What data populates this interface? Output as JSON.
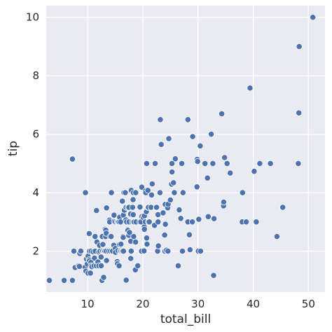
{
  "chart_data": {
    "type": "scatter",
    "title": "",
    "xlabel": "total_bill",
    "ylabel": "tip",
    "xlim": [
      2.5,
      53
    ],
    "ylim": [
      0.6,
      10.4
    ],
    "xticks": [
      10,
      20,
      30,
      40,
      50
    ],
    "yticks": [
      2,
      4,
      6,
      8,
      10
    ],
    "grid": true,
    "colors": {
      "plot_bg": "#EAEAF2",
      "grid": "#FFFFFF",
      "marker": "#4C72B0",
      "marker_edge": "#FFFFFF"
    },
    "points": [
      [
        3.07,
        1.0
      ],
      [
        5.75,
        1.0
      ],
      [
        7.25,
        1.0
      ],
      [
        7.25,
        5.15
      ],
      [
        7.51,
        2.0
      ],
      [
        7.74,
        1.44
      ],
      [
        8.35,
        1.5
      ],
      [
        8.52,
        1.48
      ],
      [
        8.58,
        1.92
      ],
      [
        8.77,
        2.0
      ],
      [
        9.55,
        1.45
      ],
      [
        9.6,
        4.0
      ],
      [
        9.68,
        1.32
      ],
      [
        9.78,
        1.73
      ],
      [
        9.94,
        1.56
      ],
      [
        10.07,
        1.83
      ],
      [
        10.07,
        1.25
      ],
      [
        10.27,
        1.71
      ],
      [
        10.29,
        2.6
      ],
      [
        10.33,
        1.67
      ],
      [
        10.34,
        2.0
      ],
      [
        10.51,
        1.25
      ],
      [
        10.59,
        1.61
      ],
      [
        10.63,
        2.0
      ],
      [
        10.65,
        1.5
      ],
      [
        10.77,
        1.47
      ],
      [
        11.02,
        1.98
      ],
      [
        11.17,
        1.5
      ],
      [
        11.24,
        1.76
      ],
      [
        11.35,
        2.5
      ],
      [
        11.38,
        2.0
      ],
      [
        11.59,
        1.5
      ],
      [
        11.61,
        3.39
      ],
      [
        11.69,
        2.31
      ],
      [
        11.87,
        1.63
      ],
      [
        12.02,
        1.97
      ],
      [
        12.03,
        1.5
      ],
      [
        12.16,
        2.2
      ],
      [
        12.26,
        2.0
      ],
      [
        12.43,
        1.8
      ],
      [
        12.46,
        1.5
      ],
      [
        12.48,
        2.52
      ],
      [
        12.54,
        2.5
      ],
      [
        12.6,
        1.0
      ],
      [
        12.66,
        2.5
      ],
      [
        12.69,
        2.0
      ],
      [
        12.74,
        2.01
      ],
      [
        12.76,
        2.23
      ],
      [
        12.9,
        1.1
      ],
      [
        13.0,
        2.0
      ],
      [
        13.03,
        2.0
      ],
      [
        13.13,
        2.0
      ],
      [
        13.16,
        2.75
      ],
      [
        13.27,
        2.5
      ],
      [
        13.28,
        2.72
      ],
      [
        13.37,
        2.0
      ],
      [
        13.39,
        2.61
      ],
      [
        13.42,
        1.68
      ],
      [
        13.42,
        3.48
      ],
      [
        13.81,
        2.0
      ],
      [
        13.94,
        3.06
      ],
      [
        14.0,
        3.0
      ],
      [
        14.07,
        2.5
      ],
      [
        14.15,
        2.0
      ],
      [
        14.26,
        2.5
      ],
      [
        14.31,
        4.0
      ],
      [
        14.48,
        2.0
      ],
      [
        14.52,
        2.0
      ],
      [
        14.73,
        2.2
      ],
      [
        14.78,
        3.23
      ],
      [
        14.83,
        3.02
      ],
      [
        15.01,
        2.09
      ],
      [
        15.04,
        1.96
      ],
      [
        15.06,
        3.0
      ],
      [
        15.36,
        1.64
      ],
      [
        15.38,
        3.0
      ],
      [
        15.42,
        1.57
      ],
      [
        15.48,
        2.02
      ],
      [
        15.53,
        3.0
      ],
      [
        15.69,
        1.5
      ],
      [
        15.69,
        3.0
      ],
      [
        15.77,
        2.23
      ],
      [
        15.81,
        3.16
      ],
      [
        15.95,
        2.0
      ],
      [
        15.98,
        2.03
      ],
      [
        15.98,
        3.0
      ],
      [
        16.0,
        2.0
      ],
      [
        16.04,
        2.24
      ],
      [
        16.21,
        2.0
      ],
      [
        16.27,
        2.5
      ],
      [
        16.29,
        3.71
      ],
      [
        16.31,
        2.0
      ],
      [
        16.4,
        2.5
      ],
      [
        16.45,
        2.47
      ],
      [
        16.47,
        3.23
      ],
      [
        16.49,
        2.0
      ],
      [
        16.58,
        4.0
      ],
      [
        16.66,
        3.4
      ],
      [
        16.82,
        4.0
      ],
      [
        16.93,
        3.07
      ],
      [
        16.97,
        3.5
      ],
      [
        16.99,
        1.01
      ],
      [
        17.07,
        3.0
      ],
      [
        17.26,
        2.74
      ],
      [
        17.29,
        2.71
      ],
      [
        17.31,
        3.5
      ],
      [
        17.46,
        2.54
      ],
      [
        17.47,
        3.5
      ],
      [
        17.51,
        3.0
      ],
      [
        17.59,
        2.64
      ],
      [
        17.78,
        3.27
      ],
      [
        17.81,
        2.34
      ],
      [
        17.82,
        1.75
      ],
      [
        17.89,
        2.0
      ],
      [
        17.92,
        4.08
      ],
      [
        18.04,
        3.0
      ],
      [
        18.15,
        3.5
      ],
      [
        18.24,
        3.76
      ],
      [
        18.26,
        3.25
      ],
      [
        18.28,
        4.0
      ],
      [
        18.29,
        3.0
      ],
      [
        18.35,
        2.5
      ],
      [
        18.43,
        3.0
      ],
      [
        18.64,
        1.36
      ],
      [
        18.69,
        2.31
      ],
      [
        18.71,
        4.0
      ],
      [
        18.78,
        3.0
      ],
      [
        19.08,
        1.5
      ],
      [
        19.44,
        3.0
      ],
      [
        19.49,
        3.51
      ],
      [
        19.65,
        3.0
      ],
      [
        19.77,
        2.0
      ],
      [
        19.81,
        4.19
      ],
      [
        19.82,
        3.18
      ],
      [
        20.08,
        3.15
      ],
      [
        20.23,
        2.01
      ],
      [
        20.27,
        2.83
      ],
      [
        20.29,
        2.75
      ],
      [
        20.29,
        3.21
      ],
      [
        20.45,
        3.0
      ],
      [
        20.49,
        4.06
      ],
      [
        20.53,
        4.0
      ],
      [
        20.65,
        3.35
      ],
      [
        20.69,
        2.45
      ],
      [
        20.69,
        5.0
      ],
      [
        20.76,
        2.24
      ],
      [
        20.9,
        3.5
      ],
      [
        20.92,
        4.08
      ],
      [
        21.01,
        3.5
      ],
      [
        21.01,
        3.0
      ],
      [
        21.16,
        3.0
      ],
      [
        21.5,
        3.5
      ],
      [
        21.58,
        3.92
      ],
      [
        21.7,
        4.3
      ],
      [
        22.12,
        2.88
      ],
      [
        22.23,
        5.0
      ],
      [
        22.42,
        3.48
      ],
      [
        22.49,
        3.5
      ],
      [
        22.67,
        2.0
      ],
      [
        22.75,
        3.25
      ],
      [
        22.76,
        3.0
      ],
      [
        22.82,
        2.18
      ],
      [
        23.1,
        4.0
      ],
      [
        23.17,
        6.5
      ],
      [
        23.33,
        5.65
      ],
      [
        23.68,
        3.31
      ],
      [
        23.95,
        2.55
      ],
      [
        24.01,
        2.0
      ],
      [
        24.06,
        3.6
      ],
      [
        24.08,
        2.92
      ],
      [
        24.27,
        2.03
      ],
      [
        24.52,
        3.48
      ],
      [
        24.55,
        2.0
      ],
      [
        24.59,
        3.61
      ],
      [
        24.71,
        5.85
      ],
      [
        25.0,
        3.75
      ],
      [
        25.21,
        4.29
      ],
      [
        25.28,
        5.0
      ],
      [
        25.29,
        4.71
      ],
      [
        25.56,
        4.34
      ],
      [
        25.71,
        4.0
      ],
      [
        25.89,
        5.16
      ],
      [
        26.41,
        1.5
      ],
      [
        26.59,
        3.41
      ],
      [
        26.86,
        3.14
      ],
      [
        26.88,
        3.12
      ],
      [
        27.05,
        5.0
      ],
      [
        27.18,
        2.0
      ],
      [
        27.2,
        4.0
      ],
      [
        27.28,
        4.0
      ],
      [
        28.15,
        3.0
      ],
      [
        28.17,
        6.5
      ],
      [
        28.44,
        2.56
      ],
      [
        28.55,
        2.05
      ],
      [
        28.97,
        3.0
      ],
      [
        29.03,
        5.92
      ],
      [
        29.8,
        4.2
      ],
      [
        29.85,
        5.14
      ],
      [
        29.93,
        5.07
      ],
      [
        30.06,
        2.0
      ],
      [
        30.14,
        3.09
      ],
      [
        30.4,
        5.6
      ],
      [
        30.46,
        2.0
      ],
      [
        31.27,
        5.0
      ],
      [
        31.71,
        4.5
      ],
      [
        31.85,
        3.18
      ],
      [
        32.4,
        6.0
      ],
      [
        32.68,
        5.0
      ],
      [
        32.83,
        1.17
      ],
      [
        32.9,
        3.11
      ],
      [
        34.3,
        6.7
      ],
      [
        34.63,
        3.55
      ],
      [
        34.65,
        3.68
      ],
      [
        34.81,
        5.2
      ],
      [
        35.26,
        5.0
      ],
      [
        35.83,
        4.67
      ],
      [
        38.01,
        3.0
      ],
      [
        38.07,
        4.0
      ],
      [
        38.73,
        3.0
      ],
      [
        39.42,
        7.58
      ],
      [
        40.17,
        4.73
      ],
      [
        40.55,
        3.0
      ],
      [
        41.19,
        5.0
      ],
      [
        43.11,
        5.0
      ],
      [
        44.3,
        2.5
      ],
      [
        45.35,
        3.5
      ],
      [
        48.17,
        5.0
      ],
      [
        48.27,
        6.73
      ],
      [
        48.33,
        9.0
      ],
      [
        50.81,
        10.0
      ]
    ]
  }
}
